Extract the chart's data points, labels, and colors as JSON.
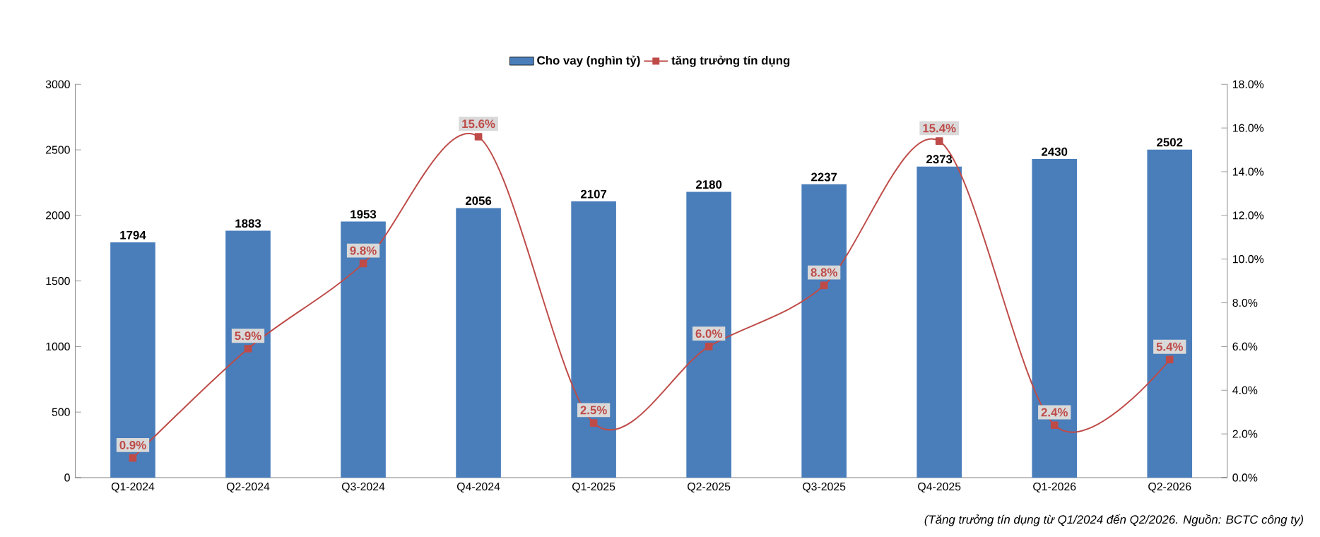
{
  "chart_data": {
    "type": "bar",
    "categories": [
      "Q1-2024",
      "Q2-2024",
      "Q3-2024",
      "Q4-2024",
      "Q1-2025",
      "Q2-2025",
      "Q3-2025",
      "Q4-2025",
      "Q1-2026",
      "Q2-2026"
    ],
    "series": [
      {
        "name": "Cho vay (nghìn tỷ)",
        "color": "#4a7ebb",
        "values": [
          1794,
          1883,
          1953,
          2056,
          2107,
          2180,
          2237,
          2373,
          2430,
          2502
        ],
        "value_labels": [
          "1794",
          "1883",
          "1953",
          "2056",
          "2107",
          "2180",
          "2237",
          "2373",
          "2430",
          "2502"
        ]
      },
      {
        "name": "tăng trưởng tín dụng",
        "type": "line",
        "axis": "y2",
        "color": "#be4b48",
        "values": [
          0.9,
          5.9,
          9.8,
          15.6,
          2.5,
          6.0,
          8.8,
          15.4,
          2.4,
          5.4
        ],
        "value_labels": [
          "0.9%",
          "5.9%",
          "9.8%",
          "15.6%",
          "2.5%",
          "6.0%",
          "8.8%",
          "15.4%",
          "2.4%",
          "5.4%"
        ]
      }
    ],
    "ylim": [
      0,
      3000
    ],
    "yticks": [
      0,
      500,
      1000,
      1500,
      2000,
      2500,
      3000
    ],
    "y2lim": [
      0,
      18
    ],
    "y2ticks": [
      {
        "value": 0,
        "label": "0.0%"
      },
      {
        "value": 2,
        "label": "2.0%"
      },
      {
        "value": 4,
        "label": "4.0%"
      },
      {
        "value": 6,
        "label": "6.0%"
      },
      {
        "value": 8,
        "label": "8.0%"
      },
      {
        "value": 10,
        "label": "10.0%"
      },
      {
        "value": 12,
        "label": "12.0%"
      },
      {
        "value": 14,
        "label": "14.0%"
      },
      {
        "value": 16,
        "label": "16.0%"
      },
      {
        "value": 18,
        "label": "18.0%"
      }
    ],
    "legend": "top",
    "marker": "square",
    "grid": false,
    "annotations": [
      "(Tăng trưởng tín dụng từ Q1/2024 đến Q2/2026. Nguồn: BCTC công ty)"
    ]
  }
}
